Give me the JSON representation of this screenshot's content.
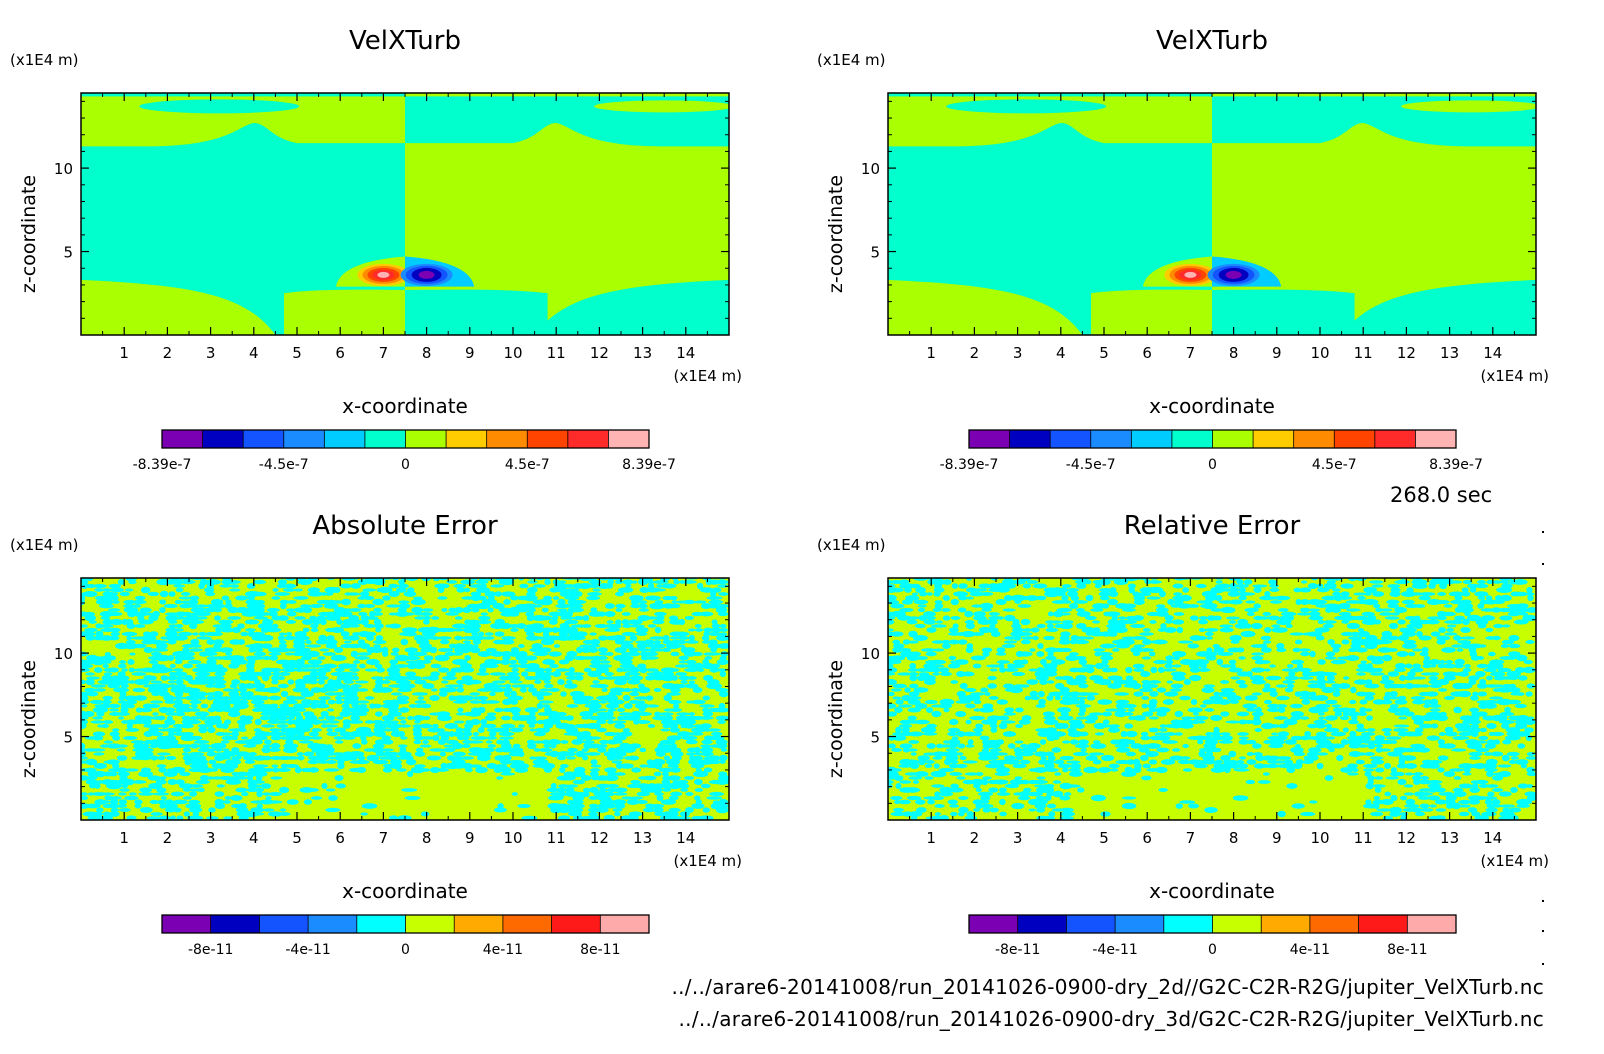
{
  "time_label": "268.0 sec",
  "file_paths": [
    "../../arare6-20141008/run_20141026-0900-dry_2d//G2C-C2R-R2G/jupiter_VelXTurb.nc",
    "../../arare6-20141008/run_20141026-0900-dry_3d/G2C-C2R-R2G/jupiter_VelXTurb.nc"
  ],
  "chart_data": [
    {
      "type": "heatmap",
      "title": "VelXTurb",
      "xlabel": "x-coordinate",
      "ylabel": "z-coordinate",
      "x_unit": "(x1E4 m)",
      "y_unit": "(x1E4 m)",
      "xlim": [
        0,
        15
      ],
      "ylim": [
        0,
        14.5
      ],
      "x_ticks": [
        "1",
        "2",
        "3",
        "4",
        "5",
        "6",
        "7",
        "8",
        "9",
        "10",
        "11",
        "12",
        "13",
        "14"
      ],
      "y_ticks": [
        "5",
        "10"
      ],
      "colorbar": {
        "colors": [
          "#7b00b3",
          "#0000c0",
          "#1454ff",
          "#1a8cff",
          "#00ccff",
          "#00ffcc",
          "#aaff00",
          "#ffcc00",
          "#ff8c00",
          "#ff4400",
          "#ff2a2a",
          "#ffb3b3"
        ],
        "labels": [
          "-8.39e-7",
          "-4.5e-7",
          "0",
          "4.5e-7",
          "8.39e-7"
        ]
      },
      "field": {
        "background": [
          "#00ffcc",
          "#aaff00"
        ],
        "positive_max": {
          "x": 7.0,
          "z": 3.6,
          "value": 8.39e-07
        },
        "negative_min": {
          "x": 8.0,
          "z": 3.6,
          "value": -8.39e-07
        }
      }
    },
    {
      "type": "heatmap",
      "title": "VelXTurb",
      "xlabel": "x-coordinate",
      "ylabel": "z-coordinate",
      "x_unit": "(x1E4 m)",
      "y_unit": "(x1E4 m)",
      "xlim": [
        0,
        15
      ],
      "ylim": [
        0,
        14.5
      ],
      "x_ticks": [
        "1",
        "2",
        "3",
        "4",
        "5",
        "6",
        "7",
        "8",
        "9",
        "10",
        "11",
        "12",
        "13",
        "14"
      ],
      "y_ticks": [
        "5",
        "10"
      ],
      "colorbar": {
        "colors": [
          "#7b00b3",
          "#0000c0",
          "#1454ff",
          "#1a8cff",
          "#00ccff",
          "#00ffcc",
          "#aaff00",
          "#ffcc00",
          "#ff8c00",
          "#ff4400",
          "#ff2a2a",
          "#ffb3b3"
        ],
        "labels": [
          "-8.39e-7",
          "-4.5e-7",
          "0",
          "4.5e-7",
          "8.39e-7"
        ]
      },
      "field": {
        "background": [
          "#00ffcc",
          "#aaff00"
        ],
        "positive_max": {
          "x": 7.0,
          "z": 3.6,
          "value": 8.39e-07
        },
        "negative_min": {
          "x": 8.0,
          "z": 3.6,
          "value": -8.39e-07
        }
      }
    },
    {
      "type": "heatmap",
      "title": "Absolute Error",
      "xlabel": "x-coordinate",
      "ylabel": "z-coordinate",
      "x_unit": "(x1E4 m)",
      "y_unit": "(x1E4 m)",
      "xlim": [
        0,
        15
      ],
      "ylim": [
        0,
        14.5
      ],
      "x_ticks": [
        "1",
        "2",
        "3",
        "4",
        "5",
        "6",
        "7",
        "8",
        "9",
        "10",
        "11",
        "12",
        "13",
        "14"
      ],
      "y_ticks": [
        "5",
        "10"
      ],
      "colorbar": {
        "colors": [
          "#7b00b3",
          "#0000c0",
          "#1454ff",
          "#1a8cff",
          "#00ffff",
          "#c8ff00",
          "#ffaa00",
          "#ff6a00",
          "#ff1a1a",
          "#ffaaaa"
        ],
        "labels": [
          "-8e-11",
          "-4e-11",
          "0",
          "4e-11",
          "8e-11"
        ]
      },
      "field": {
        "background": [
          "#00ffff",
          "#c8ff00"
        ],
        "pattern": "noise"
      }
    },
    {
      "type": "heatmap",
      "title": "Relative Error",
      "xlabel": "x-coordinate",
      "ylabel": "z-coordinate",
      "x_unit": "(x1E4 m)",
      "y_unit": "(x1E4 m)",
      "xlim": [
        0,
        15
      ],
      "ylim": [
        0,
        14.5
      ],
      "x_ticks": [
        "1",
        "2",
        "3",
        "4",
        "5",
        "6",
        "7",
        "8",
        "9",
        "10",
        "11",
        "12",
        "13",
        "14"
      ],
      "y_ticks": [
        "5",
        "10"
      ],
      "colorbar": {
        "colors": [
          "#7b00b3",
          "#0000c0",
          "#1454ff",
          "#1a8cff",
          "#00ffff",
          "#c8ff00",
          "#ffaa00",
          "#ff6a00",
          "#ff1a1a",
          "#ffaaaa"
        ],
        "labels": [
          "-8e-11",
          "-4e-11",
          "0",
          "4e-11",
          "8e-11"
        ]
      },
      "field": {
        "background": [
          "#00ffff",
          "#c8ff00"
        ],
        "pattern": "noise"
      }
    }
  ]
}
